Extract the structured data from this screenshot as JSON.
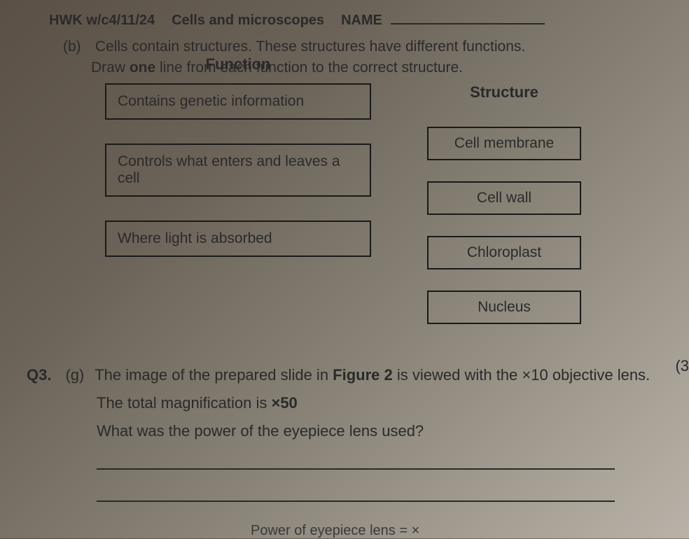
{
  "header": {
    "hwk": "HWK w/c4/11/24",
    "topic": "Cells and microscopes",
    "name_label": "NAME"
  },
  "partB": {
    "label": "(b)",
    "line1": "Cells contain structures. These structures have different functions.",
    "line2": "Draw one line from each function to the correct structure.",
    "function_header": "Function",
    "structure_header": "Structure",
    "functions": [
      "Contains genetic information",
      "Controls what enters and leaves a cell",
      "Where light is absorbed"
    ],
    "structures": [
      "Cell membrane",
      "Cell wall",
      "Chloroplast",
      "Nucleus"
    ]
  },
  "q3": {
    "label": "Q3.",
    "part": "(g)",
    "line1_a": "The image of the prepared slide in ",
    "line1_b": "Figure 2",
    "line1_c": " is viewed with the ×10 objective lens.",
    "line2": "The total magnification is ×50",
    "line3": "What was the power of the eyepiece lens used?",
    "cutoff": "Power of eyepiece lens = ×"
  },
  "paren": "(3"
}
